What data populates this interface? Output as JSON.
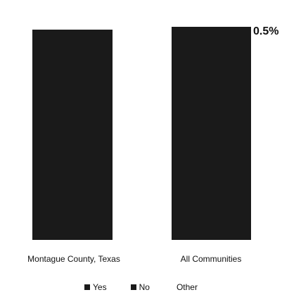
{
  "chart_data": {
    "type": "bar",
    "title": "",
    "categories": [
      "Montague County, Texas",
      "All Communities"
    ],
    "series": [
      {
        "name": "Yes",
        "values": [
          null,
          null
        ]
      },
      {
        "name": "No",
        "values": [
          null,
          null
        ]
      },
      {
        "name": "Other",
        "values": [
          null,
          0.5
        ]
      }
    ],
    "data_labels": [
      "",
      "0.5%"
    ],
    "ylim": [
      0,
      100
    ],
    "grid": false,
    "legend": "bottom",
    "colors": {
      "bar_fill": "#1a1a1a",
      "legend_swatch": "#1a1a1a"
    }
  }
}
